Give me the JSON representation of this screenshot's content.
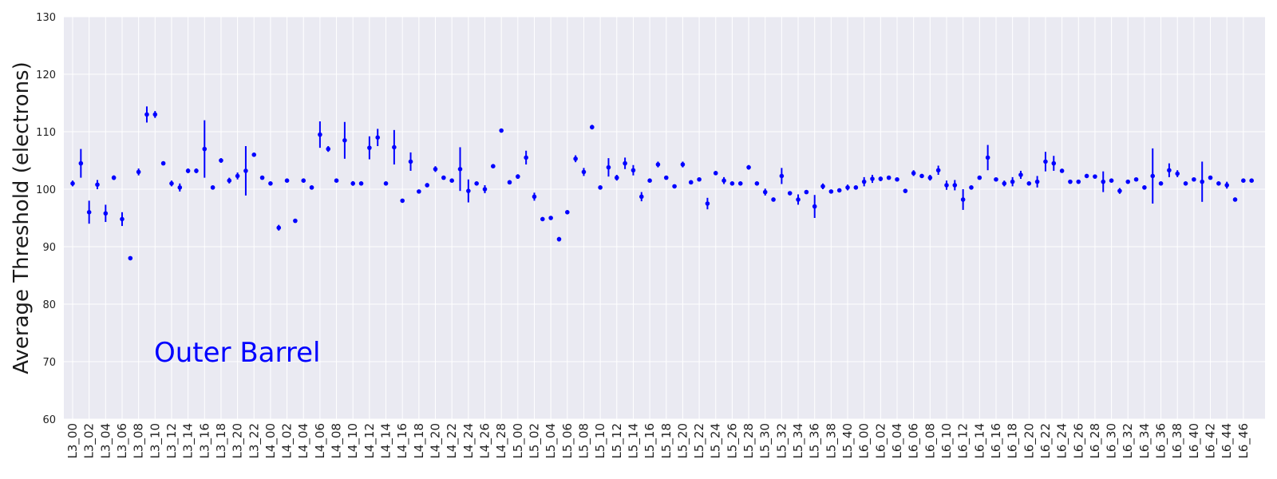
{
  "chart_data": {
    "type": "scatter",
    "ylabel": "Average Threshold (electrons)",
    "ylim": [
      60,
      130
    ],
    "yticks": [
      60,
      70,
      80,
      90,
      100,
      110,
      120,
      130
    ],
    "grid": true,
    "marker_color": "#0000ff",
    "background_color": "#eaeaf2",
    "grid_color": "#ffffff",
    "annotation": "Outer Barrel",
    "x_tick_labels": [
      "L3_00",
      "L3_02",
      "L3_04",
      "L3_06",
      "L3_08",
      "L3_10",
      "L3_12",
      "L3_14",
      "L3_16",
      "L3_18",
      "L3_20",
      "L3_22",
      "L4_00",
      "L4_02",
      "L4_04",
      "L4_06",
      "L4_08",
      "L4_10",
      "L4_12",
      "L4_14",
      "L4_16",
      "L4_18",
      "L4_20",
      "L4_22",
      "L4_24",
      "L4_26",
      "L4_28",
      "L5_00",
      "L5_02",
      "L5_04",
      "L5_06",
      "L5_08",
      "L5_10",
      "L5_12",
      "L5_14",
      "L5_16",
      "L5_18",
      "L5_20",
      "L5_22",
      "L5_24",
      "L5_26",
      "L5_28",
      "L5_30",
      "L5_32",
      "L5_34",
      "L5_36",
      "L5_38",
      "L5_40",
      "L6_00",
      "L6_02",
      "L6_04",
      "L6_06",
      "L6_08",
      "L6_10",
      "L6_12",
      "L6_14",
      "L6_16",
      "L6_18",
      "L6_20",
      "L6_22",
      "L6_24",
      "L6_26",
      "L6_28",
      "L6_30",
      "L6_32",
      "L6_34",
      "L6_36",
      "L6_38",
      "L6_40",
      "L6_42",
      "L6_44",
      "L6_46"
    ],
    "points": [
      [
        101.0,
        0.5
      ],
      [
        104.5,
        2.5
      ],
      [
        96.0,
        2.0
      ],
      [
        100.8,
        0.8
      ],
      [
        95.8,
        1.5
      ],
      [
        102.0,
        0.4
      ],
      [
        94.8,
        1.2
      ],
      [
        88.0,
        0.3
      ],
      [
        103.0,
        0.6
      ],
      [
        113.0,
        1.4
      ],
      [
        113.0,
        0.6
      ],
      [
        104.5,
        0.3
      ],
      [
        101.0,
        0.5
      ],
      [
        100.3,
        0.7
      ],
      [
        103.2,
        0.4
      ],
      [
        103.2,
        0.4
      ],
      [
        107.0,
        5.0
      ],
      [
        100.3,
        0.3
      ],
      [
        105.0,
        0.4
      ],
      [
        101.5,
        0.5
      ],
      [
        102.3,
        0.6
      ],
      [
        103.2,
        4.3
      ],
      [
        106.0,
        0.3
      ],
      [
        102.0,
        0.3
      ],
      [
        101.0,
        0.3
      ],
      [
        93.3,
        0.5
      ],
      [
        101.5,
        0.3
      ],
      [
        94.5,
        0.3
      ],
      [
        101.5,
        0.3
      ],
      [
        100.3,
        0.3
      ],
      [
        109.5,
        2.3
      ],
      [
        107.0,
        0.5
      ],
      [
        101.5,
        0.3
      ],
      [
        108.5,
        3.2
      ],
      [
        101.0,
        0.4
      ],
      [
        101.0,
        0.3
      ],
      [
        107.2,
        2.0
      ],
      [
        109.0,
        1.5
      ],
      [
        101.0,
        0.3
      ],
      [
        107.3,
        3.0
      ],
      [
        98.0,
        0.3
      ],
      [
        104.8,
        1.6
      ],
      [
        99.6,
        0.3
      ],
      [
        100.7,
        0.3
      ],
      [
        103.5,
        0.5
      ],
      [
        102.0,
        0.3
      ],
      [
        101.5,
        0.3
      ],
      [
        103.5,
        3.8
      ],
      [
        99.7,
        2.0
      ],
      [
        101.0,
        0.3
      ],
      [
        100.0,
        0.7
      ],
      [
        104.0,
        0.3
      ],
      [
        110.2,
        0.3
      ],
      [
        101.2,
        0.3
      ],
      [
        102.2,
        0.4
      ],
      [
        105.5,
        1.2
      ],
      [
        98.7,
        0.7
      ],
      [
        94.8,
        0.3
      ],
      [
        95.0,
        0.3
      ],
      [
        91.3,
        0.4
      ],
      [
        96.0,
        0.3
      ],
      [
        105.3,
        0.6
      ],
      [
        103.0,
        0.7
      ],
      [
        110.8,
        0.4
      ],
      [
        100.3,
        0.3
      ],
      [
        103.8,
        1.6
      ],
      [
        102.0,
        0.5
      ],
      [
        104.5,
        1.0
      ],
      [
        103.3,
        0.9
      ],
      [
        98.7,
        0.8
      ],
      [
        101.5,
        0.3
      ],
      [
        104.3,
        0.5
      ],
      [
        102.0,
        0.3
      ],
      [
        100.5,
        0.3
      ],
      [
        104.3,
        0.5
      ],
      [
        101.2,
        0.3
      ],
      [
        101.7,
        0.3
      ],
      [
        97.5,
        1.0
      ],
      [
        102.8,
        0.3
      ],
      [
        101.5,
        0.6
      ],
      [
        101.0,
        0.3
      ],
      [
        101.0,
        0.3
      ],
      [
        103.8,
        0.4
      ],
      [
        101.0,
        0.3
      ],
      [
        99.5,
        0.6
      ],
      [
        98.2,
        0.3
      ],
      [
        102.3,
        1.4
      ],
      [
        99.3,
        0.3
      ],
      [
        98.2,
        0.9
      ],
      [
        99.5,
        0.3
      ],
      [
        97.0,
        2.0
      ],
      [
        100.5,
        0.5
      ],
      [
        99.6,
        0.3
      ],
      [
        99.8,
        0.3
      ],
      [
        100.3,
        0.5
      ],
      [
        100.3,
        0.3
      ],
      [
        101.3,
        0.8
      ],
      [
        101.8,
        0.7
      ],
      [
        101.8,
        0.4
      ],
      [
        102.0,
        0.3
      ],
      [
        101.7,
        0.3
      ],
      [
        99.7,
        0.3
      ],
      [
        102.8,
        0.5
      ],
      [
        102.3,
        0.3
      ],
      [
        102.0,
        0.5
      ],
      [
        103.3,
        0.8
      ],
      [
        100.7,
        0.8
      ],
      [
        100.7,
        0.9
      ],
      [
        98.2,
        1.8
      ],
      [
        100.3,
        0.3
      ],
      [
        102.0,
        0.3
      ],
      [
        105.5,
        2.2
      ],
      [
        101.7,
        0.3
      ],
      [
        101.0,
        0.5
      ],
      [
        101.3,
        0.8
      ],
      [
        102.5,
        0.7
      ],
      [
        101.0,
        0.3
      ],
      [
        101.3,
        1.0
      ],
      [
        104.8,
        1.7
      ],
      [
        104.5,
        1.3
      ],
      [
        103.2,
        0.3
      ],
      [
        101.3,
        0.3
      ],
      [
        101.3,
        0.3
      ],
      [
        102.3,
        0.3
      ],
      [
        102.2,
        0.3
      ],
      [
        101.3,
        1.8
      ],
      [
        101.5,
        0.3
      ],
      [
        99.7,
        0.5
      ],
      [
        101.3,
        0.3
      ],
      [
        101.7,
        0.3
      ],
      [
        100.3,
        0.3
      ],
      [
        102.3,
        4.8
      ],
      [
        101.0,
        0.3
      ],
      [
        103.3,
        1.2
      ],
      [
        102.7,
        0.6
      ],
      [
        101.0,
        0.3
      ],
      [
        101.7,
        0.3
      ],
      [
        101.3,
        3.5
      ],
      [
        102.0,
        0.3
      ],
      [
        101.0,
        0.3
      ],
      [
        100.7,
        0.6
      ],
      [
        98.2,
        0.3
      ],
      [
        101.5,
        0.3
      ],
      [
        101.5,
        0.3
      ]
    ]
  }
}
